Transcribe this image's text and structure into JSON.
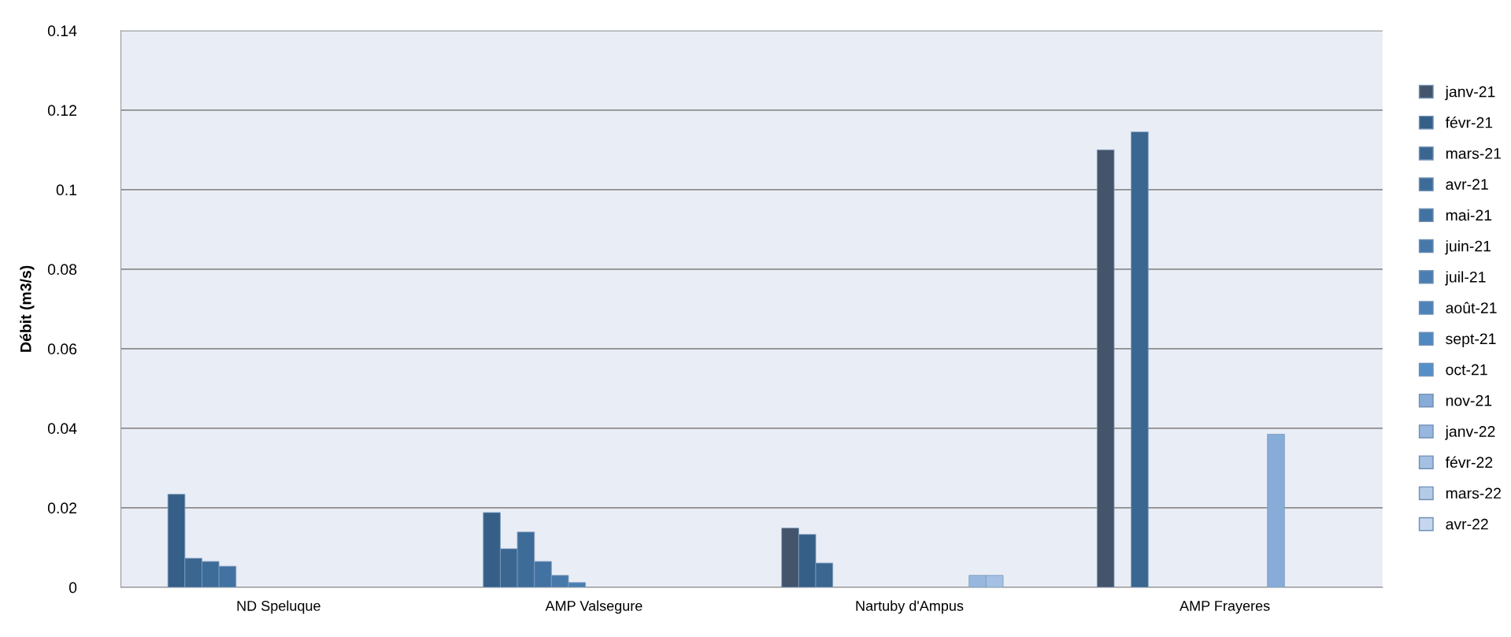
{
  "chart_data": {
    "type": "bar",
    "ylabel": "Débit (m3/s)",
    "categories": [
      "ND Speluque",
      "AMP Valsegure",
      "Nartuby d'Ampus",
      "AMP Frayeres"
    ],
    "ylim": [
      0,
      0.14
    ],
    "yticks": [
      0,
      0.02,
      0.04,
      0.06,
      0.08,
      {
        "value": 0.1,
        "label": "0.1"
      },
      0.12,
      0.14
    ],
    "grid": "y",
    "legend": "right",
    "series": [
      {
        "name": "janv-21",
        "color": "#44546a",
        "values": [
          null,
          null,
          0.0149,
          0.11
        ]
      },
      {
        "name": "févr-21",
        "color": "#355f87",
        "values": [
          0.0234,
          0.0188,
          0.0133,
          null
        ]
      },
      {
        "name": "mars-21",
        "color": "#3a6690",
        "values": [
          0.0073,
          0.0097,
          0.0061,
          0.1145
        ]
      },
      {
        "name": "avr-21",
        "color": "#3d6c99",
        "values": [
          0.0065,
          0.0139,
          null,
          null
        ]
      },
      {
        "name": "mai-21",
        "color": "#4272a1",
        "values": [
          0.0053,
          0.0065,
          null,
          null
        ]
      },
      {
        "name": "juin-21",
        "color": "#4678aa",
        "values": [
          null,
          0.003,
          null,
          null
        ]
      },
      {
        "name": "juil-21",
        "color": "#4a7eb2",
        "values": [
          null,
          0.0012,
          null,
          null
        ]
      },
      {
        "name": "août-21",
        "color": "#4d83b9",
        "values": [
          null,
          null,
          null,
          null
        ]
      },
      {
        "name": "sept-21",
        "color": "#5089c0",
        "values": [
          null,
          null,
          null,
          null
        ]
      },
      {
        "name": "oct-21",
        "color": "#5590c8",
        "values": [
          null,
          null,
          null,
          null
        ]
      },
      {
        "name": "nov-21",
        "color": "#88acd8",
        "values": [
          null,
          null,
          null,
          0.0385
        ]
      },
      {
        "name": "janv-22",
        "color": "#98b7df",
        "values": [
          null,
          null,
          0.003,
          null
        ]
      },
      {
        "name": "févr-22",
        "color": "#a5c0e3",
        "values": [
          null,
          null,
          0.003,
          null
        ]
      },
      {
        "name": "mars-22",
        "color": "#b4cbe8",
        "values": [
          null,
          null,
          null,
          null
        ]
      },
      {
        "name": "avr-22",
        "color": "#c5d6ee",
        "values": [
          null,
          null,
          null,
          null
        ]
      }
    ]
  }
}
